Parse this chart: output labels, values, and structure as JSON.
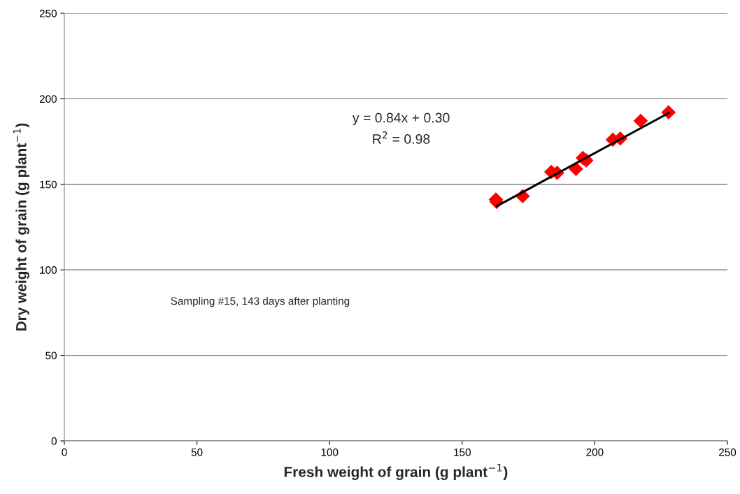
{
  "chart_data": {
    "type": "scatter",
    "xlabel": "Fresh weight of grain (g plant$^{−1}$)",
    "ylabel": "Dry weight of grain (g plant$^{−1}$)",
    "xlim": [
      0,
      250
    ],
    "ylim": [
      0,
      250
    ],
    "xticks": [
      0,
      50,
      100,
      150,
      200,
      250
    ],
    "yticks": [
      0,
      50,
      100,
      150,
      200,
      250
    ],
    "grid": "y",
    "series": [
      {
        "color": "#ff0000",
        "marker": "diamond",
        "x": [
          162.7,
          163.0,
          172.8,
          183.6,
          185.8,
          192.9,
          195.5,
          196.8,
          206.8,
          209.6,
          217.3,
          227.8
        ],
        "values": [
          141.1,
          139.7,
          143.1,
          157.3,
          156.7,
          159.0,
          165.4,
          164.0,
          176.1,
          176.8,
          187.1,
          192.1
        ]
      },
      {
        "type": "line",
        "color": "#000000",
        "marker": "none",
        "line_style": "solid",
        "x": [
          163,
          228
        ],
        "values": [
          137.2,
          191.8
        ]
      }
    ],
    "annotations": [
      "y = 0.84x + 0.30",
      "R$^{2}$ = 0.98",
      "Sampling #15, 143 days after planting"
    ]
  }
}
